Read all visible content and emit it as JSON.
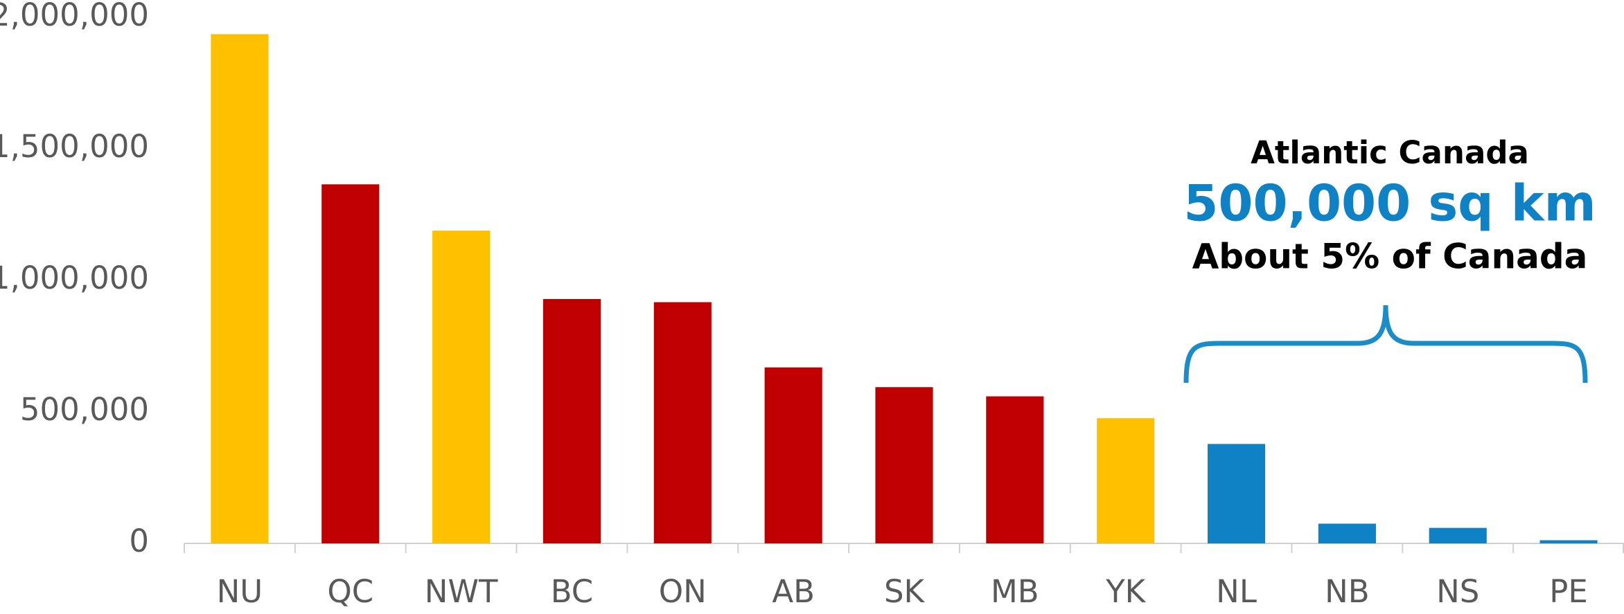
{
  "chart_data": {
    "type": "bar",
    "categories": [
      "NU",
      "QC",
      "NWT",
      "BC",
      "ON",
      "AB",
      "SK",
      "MB",
      "YK",
      "NL",
      "NB",
      "NS",
      "PE"
    ],
    "values": [
      1936000,
      1365000,
      1189000,
      929000,
      917000,
      669000,
      594000,
      559000,
      476000,
      378000,
      75000,
      59000,
      12000
    ],
    "colors": [
      "#FFC000",
      "#C00000",
      "#FFC000",
      "#C00000",
      "#C00000",
      "#C00000",
      "#C00000",
      "#C00000",
      "#FFC000",
      "#0E82C4",
      "#0E82C4",
      "#0E82C4",
      "#0E82C4"
    ],
    "ylim": [
      0,
      2000000
    ],
    "yticks": [
      0,
      {
        "value": 500000,
        "label": "500,000"
      },
      {
        "value": 1000000,
        "label": "1,000,000"
      },
      {
        "value": 1500000,
        "label": "1,500,000"
      },
      {
        "value": 2000000,
        "label": "2,000,000"
      }
    ],
    "grid": false,
    "annotation": {
      "title": "Atlantic Canada",
      "highlight": "500,000 sq km",
      "note": "About 5% of Canada"
    }
  }
}
